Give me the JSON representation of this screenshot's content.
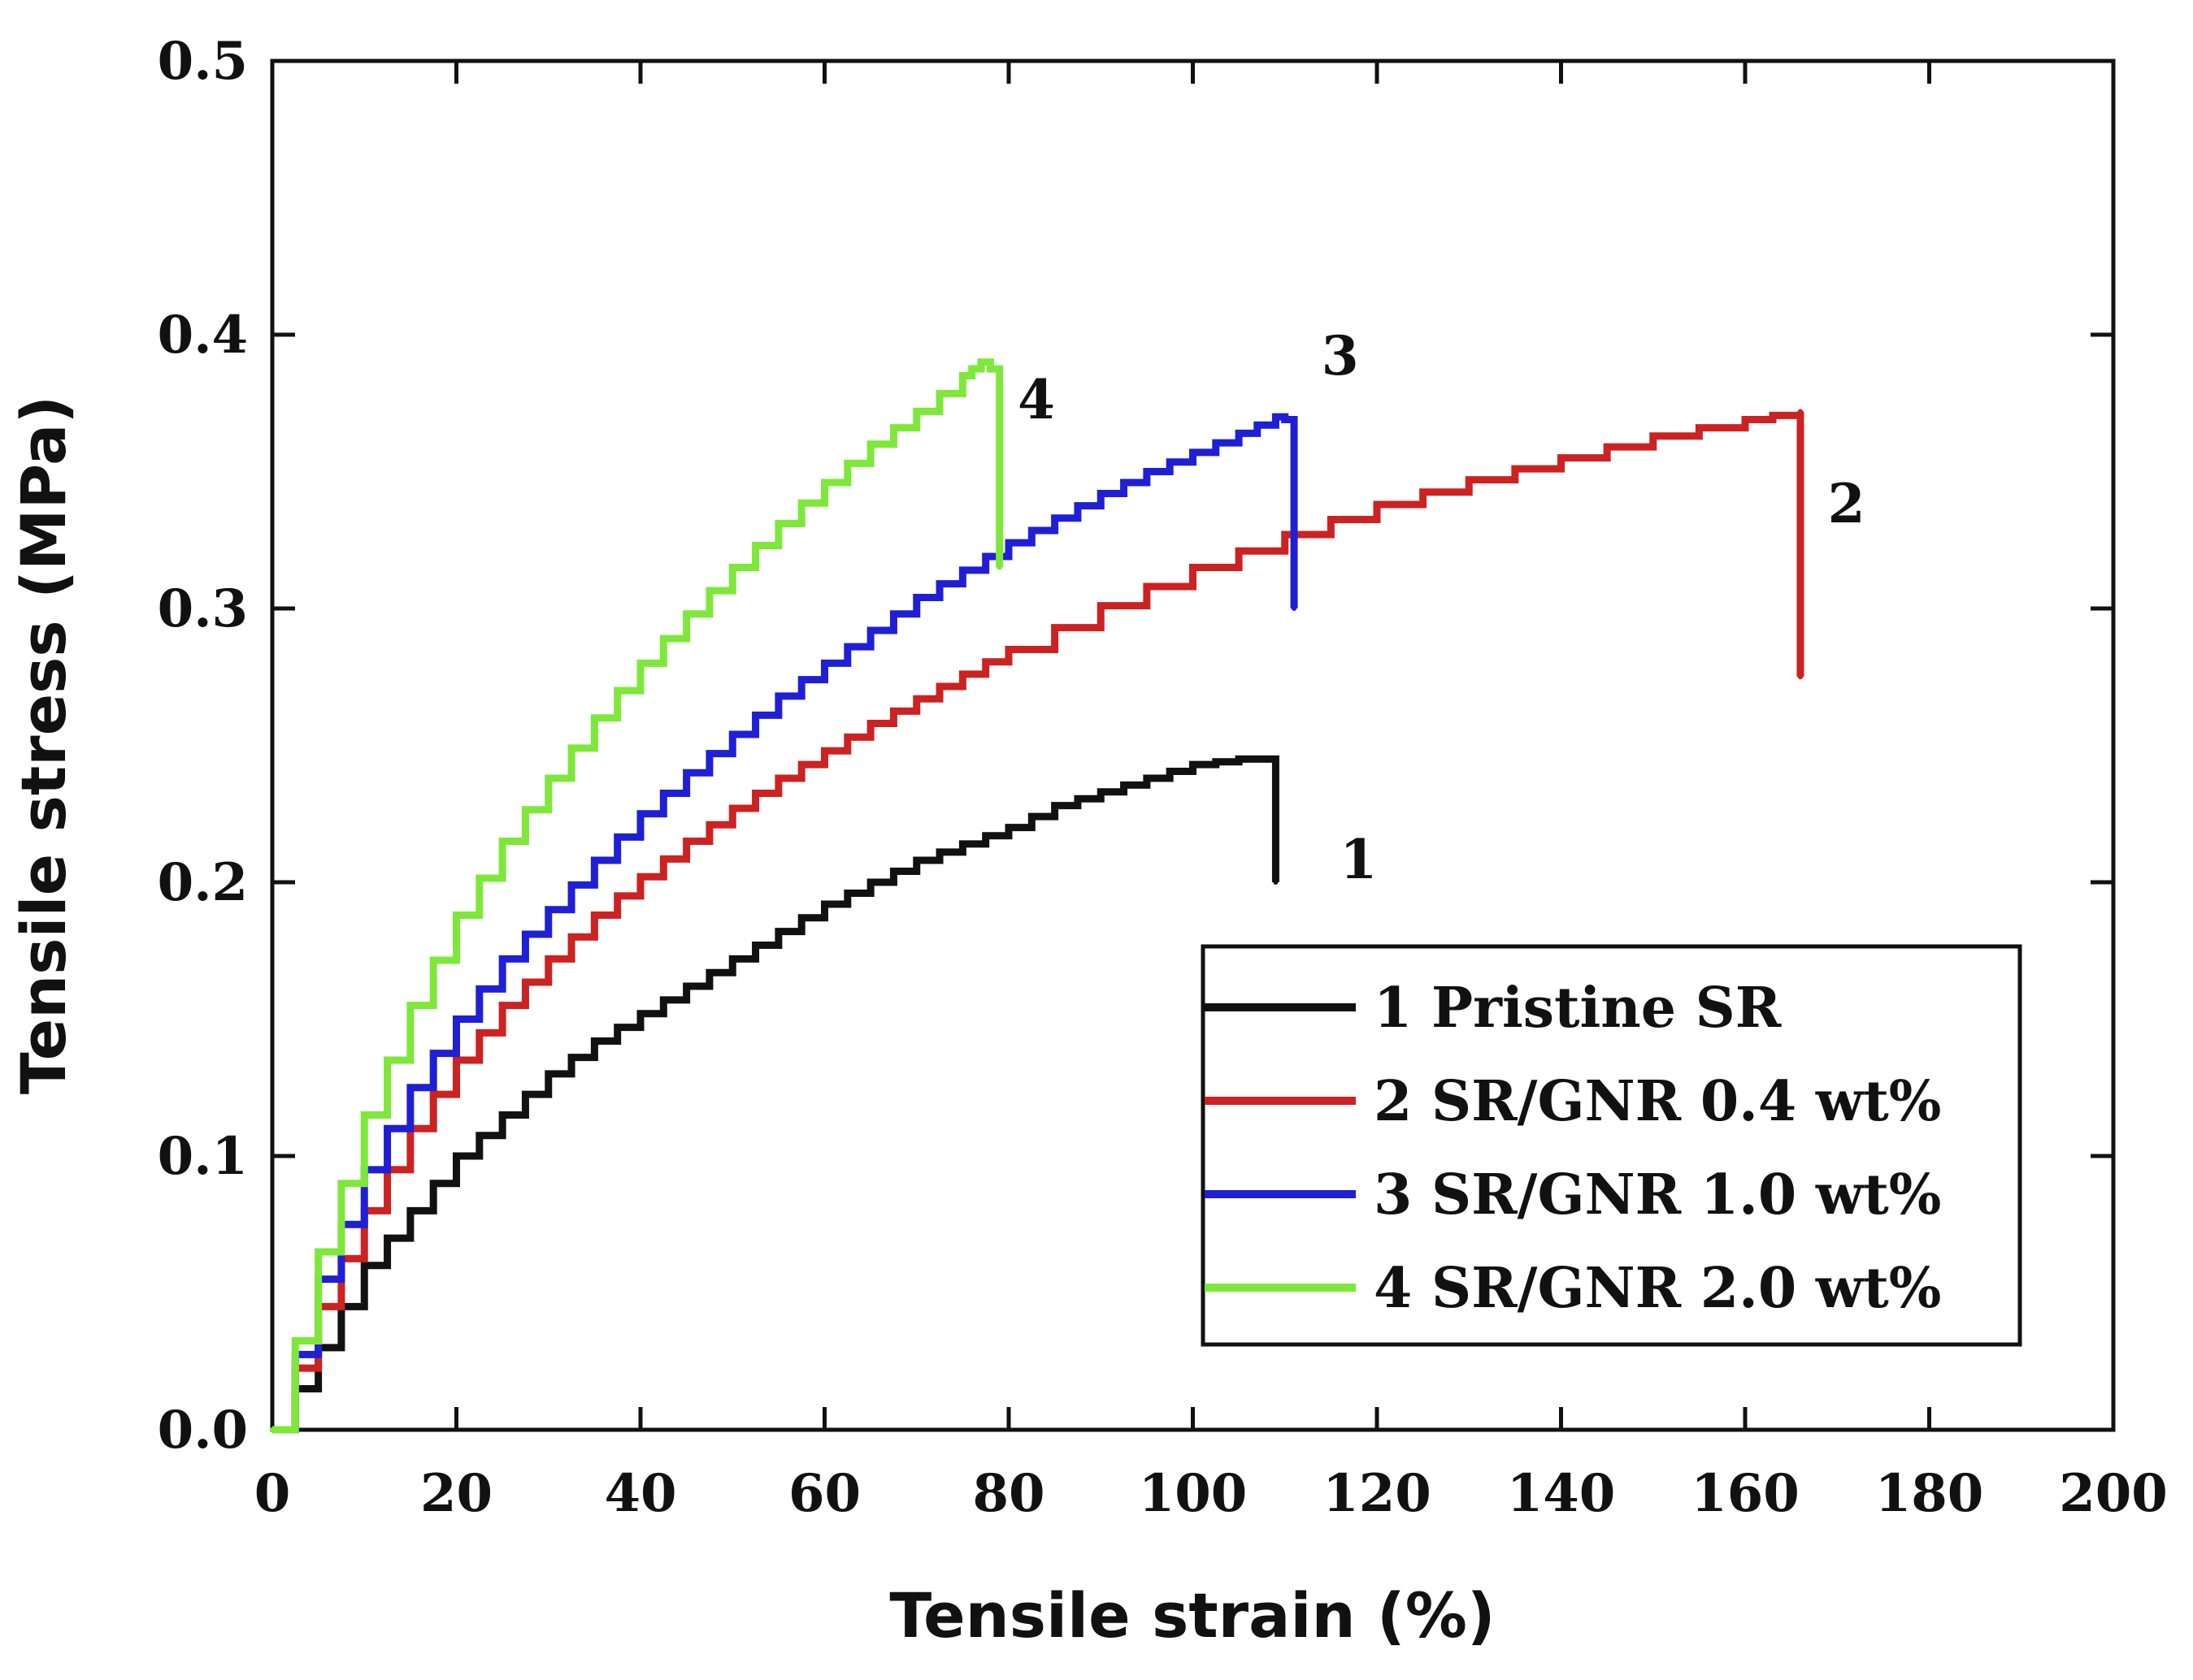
{
  "chart_data": {
    "type": "line",
    "title": "",
    "xlabel": "Tensile strain (%)",
    "ylabel": "Tensile stress (MPa)",
    "xlim": [
      0,
      200
    ],
    "ylim": [
      0,
      0.5
    ],
    "xticks": [
      0,
      20,
      40,
      60,
      80,
      100,
      120,
      140,
      160,
      180,
      200
    ],
    "xtick_labels": [
      "0",
      "20",
      "40",
      "60",
      "80",
      "100",
      "120",
      "140",
      "160",
      "180",
      "200"
    ],
    "yticks": [
      0,
      0.1,
      0.2,
      0.3,
      0.4,
      0.5
    ],
    "ytick_labels": [
      "0.0",
      "0.1",
      "0.2",
      "0.3",
      "0.4",
      "0.5"
    ],
    "grid": false,
    "legend_position": "lower-right",
    "series": [
      {
        "name": "1 Pristine SR",
        "label": "1",
        "color": "#111111",
        "points": [
          [
            0,
            0
          ],
          [
            5,
            0.03
          ],
          [
            10,
            0.06
          ],
          [
            15,
            0.08
          ],
          [
            20,
            0.1
          ],
          [
            25,
            0.115
          ],
          [
            30,
            0.13
          ],
          [
            35,
            0.142
          ],
          [
            40,
            0.152
          ],
          [
            45,
            0.162
          ],
          [
            50,
            0.172
          ],
          [
            55,
            0.182
          ],
          [
            60,
            0.192
          ],
          [
            65,
            0.2
          ],
          [
            70,
            0.208
          ],
          [
            75,
            0.214
          ],
          [
            80,
            0.22
          ],
          [
            85,
            0.228
          ],
          [
            90,
            0.233
          ],
          [
            95,
            0.238
          ],
          [
            100,
            0.243
          ],
          [
            105,
            0.245
          ],
          [
            109,
            0.245
          ],
          [
            109,
            0.2
          ]
        ]
      },
      {
        "name": "2 SR/GNR 0.4 wt%",
        "label": "2",
        "color": "#cc2222",
        "points": [
          [
            0,
            0
          ],
          [
            5,
            0.045
          ],
          [
            10,
            0.08
          ],
          [
            15,
            0.11
          ],
          [
            20,
            0.135
          ],
          [
            25,
            0.155
          ],
          [
            30,
            0.172
          ],
          [
            35,
            0.188
          ],
          [
            40,
            0.202
          ],
          [
            45,
            0.215
          ],
          [
            50,
            0.227
          ],
          [
            55,
            0.238
          ],
          [
            60,
            0.248
          ],
          [
            65,
            0.258
          ],
          [
            70,
            0.267
          ],
          [
            75,
            0.276
          ],
          [
            80,
            0.285
          ],
          [
            90,
            0.301
          ],
          [
            100,
            0.315
          ],
          [
            110,
            0.327
          ],
          [
            120,
            0.338
          ],
          [
            130,
            0.347
          ],
          [
            140,
            0.355
          ],
          [
            150,
            0.363
          ],
          [
            160,
            0.369
          ],
          [
            166,
            0.372
          ],
          [
            166,
            0.275
          ]
        ]
      },
      {
        "name": "3 SR/GNR 1.0 wt%",
        "label": "3",
        "color": "#1f1fd6",
        "points": [
          [
            0,
            0
          ],
          [
            5,
            0.055
          ],
          [
            10,
            0.095
          ],
          [
            15,
            0.125
          ],
          [
            20,
            0.15
          ],
          [
            25,
            0.172
          ],
          [
            30,
            0.19
          ],
          [
            35,
            0.208
          ],
          [
            40,
            0.225
          ],
          [
            45,
            0.24
          ],
          [
            50,
            0.254
          ],
          [
            55,
            0.268
          ],
          [
            60,
            0.28
          ],
          [
            65,
            0.292
          ],
          [
            70,
            0.304
          ],
          [
            75,
            0.314
          ],
          [
            80,
            0.324
          ],
          [
            85,
            0.333
          ],
          [
            90,
            0.342
          ],
          [
            95,
            0.35
          ],
          [
            100,
            0.357
          ],
          [
            105,
            0.364
          ],
          [
            109,
            0.37
          ],
          [
            111,
            0.368
          ],
          [
            111,
            0.3
          ]
        ]
      },
      {
        "name": "4 SR/GNR 2.0 wt%",
        "label": "4",
        "color": "#7ee83a",
        "points": [
          [
            0,
            0
          ],
          [
            5,
            0.065
          ],
          [
            10,
            0.115
          ],
          [
            15,
            0.155
          ],
          [
            20,
            0.188
          ],
          [
            25,
            0.215
          ],
          [
            30,
            0.238
          ],
          [
            35,
            0.26
          ],
          [
            40,
            0.28
          ],
          [
            45,
            0.298
          ],
          [
            50,
            0.315
          ],
          [
            55,
            0.331
          ],
          [
            60,
            0.346
          ],
          [
            65,
            0.36
          ],
          [
            70,
            0.372
          ],
          [
            75,
            0.385
          ],
          [
            77,
            0.39
          ],
          [
            79,
            0.385
          ],
          [
            79,
            0.315
          ]
        ]
      }
    ],
    "curve_label_positions": [
      {
        "label": "1",
        "x": 118,
        "y": 0.208
      },
      {
        "label": "2",
        "x": 171,
        "y": 0.338
      },
      {
        "label": "3",
        "x": 116,
        "y": 0.392
      },
      {
        "label": "4",
        "x": 83,
        "y": 0.376
      }
    ]
  }
}
